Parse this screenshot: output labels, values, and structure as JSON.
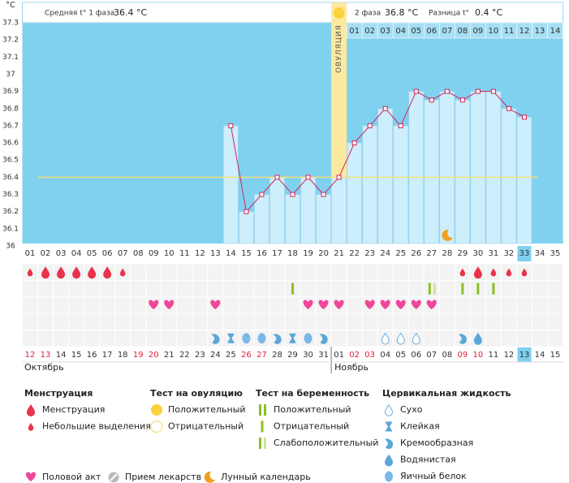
{
  "chart_data": {
    "type": "line",
    "y_label": "°C",
    "header": {
      "phase1_label": "Средняя t° 1 фаза",
      "phase1_value": "36.4 °C",
      "phase2_label": "2 фаза",
      "phase2_value": "36.8 °C",
      "diff_label": "Разница t°",
      "diff_value": "0.4 °C"
    },
    "categories": [
      "01",
      "02",
      "03",
      "04",
      "05",
      "06",
      "07",
      "08",
      "09",
      "10",
      "11",
      "12",
      "13",
      "14",
      "15",
      "16",
      "17",
      "18",
      "19",
      "20",
      "21",
      "22",
      "23",
      "24",
      "25",
      "26",
      "27",
      "28",
      "29",
      "30",
      "31",
      "32",
      "33",
      "34",
      "35"
    ],
    "values": [
      null,
      null,
      null,
      null,
      null,
      null,
      null,
      null,
      null,
      null,
      null,
      null,
      null,
      36.7,
      36.2,
      36.3,
      36.4,
      36.3,
      36.4,
      36.3,
      36.4,
      36.6,
      36.7,
      36.8,
      36.7,
      36.9,
      36.85,
      36.9,
      36.85,
      36.9,
      36.9,
      36.8,
      36.75,
      null,
      null
    ],
    "color": "#d0245a",
    "ylim": [
      36,
      37.3
    ],
    "yticks": [
      36,
      36.1,
      36.2,
      36.3,
      36.4,
      36.5,
      36.6,
      36.7,
      36.8,
      36.9,
      37,
      37.1,
      37.2,
      37.3
    ],
    "grid": false,
    "coverline": 36.4,
    "ovulation": {
      "label": "ОВУЛЯЦИЯ",
      "category": "21"
    },
    "phase2_start": "22",
    "phase2_days": [
      "01",
      "02",
      "03",
      "04",
      "05",
      "06",
      "07",
      "08",
      "09",
      "10",
      "11",
      "12",
      "13",
      "14"
    ],
    "today": "33",
    "dates": [
      "12",
      "13",
      "14",
      "15",
      "16",
      "17",
      "18",
      "19",
      "20",
      "21",
      "22",
      "23",
      "24",
      "25",
      "26",
      "27",
      "28",
      "29",
      "30",
      "31",
      "01",
      "02",
      "03",
      "04",
      "05",
      "06",
      "07",
      "08",
      "09",
      "10",
      "11",
      "12",
      "13",
      "14",
      "15"
    ],
    "weekend_days": [
      "01",
      "02",
      "08",
      "09",
      "15",
      "16",
      "22",
      "23",
      "29",
      "30"
    ],
    "months": [
      "Октябрь",
      "Ноябрь"
    ],
    "legend": [
      {
        "title": "Менструация",
        "items": [
          {
            "label": "Менструация",
            "shape": "drop",
            "color": "#e8334a",
            "days": [
              "02",
              "03",
              "04",
              "05",
              "06",
              "30"
            ]
          },
          {
            "label": "Небольшие выделения",
            "shape": "small-drop",
            "color": "#e8334a",
            "days": [
              "01",
              "07",
              "29",
              "31",
              "32",
              "33"
            ]
          }
        ]
      },
      {
        "title": "Тест на овуляцию",
        "items": [
          {
            "label": "Положительный",
            "shape": "circle",
            "color": "#f9d23c",
            "days": []
          },
          {
            "label": "Отрицательный",
            "shape": "ring",
            "color": "#f3d66a",
            "days": []
          }
        ]
      },
      {
        "title": "Тест на беременность",
        "items": [
          {
            "label": "Положительный",
            "shape": "bar-double",
            "color": "#8cbf22",
            "days": []
          },
          {
            "label": "Отрицательный",
            "shape": "bar",
            "color": "#8cbf22",
            "days": [
              "18",
              "29",
              "30",
              "31"
            ]
          },
          {
            "label": "Слабоположительный",
            "shape": "bar-weak",
            "color": "#8cbf22",
            "days": [
              "27"
            ]
          }
        ]
      },
      {
        "title": "Цервикальная жидкость",
        "items": [
          {
            "label": "Сухо",
            "shape": "dry",
            "color": "#5aa7d8",
            "days": [
              "24",
              "25",
              "26"
            ]
          },
          {
            "label": "Клейкая",
            "shape": "sticky",
            "color": "#5aa7d8",
            "days": [
              "14",
              "18"
            ]
          },
          {
            "label": "Кремообразная",
            "shape": "creamy",
            "color": "#5aa7d8",
            "days": [
              "13",
              "17",
              "20",
              "29"
            ]
          },
          {
            "label": "Водянистая",
            "shape": "watery",
            "color": "#5aa7d8",
            "days": [
              "30"
            ]
          },
          {
            "label": "Яичный белок",
            "shape": "egg",
            "color": "#79b9e6",
            "days": [
              "15",
              "16",
              "19"
            ]
          }
        ]
      }
    ],
    "legend_extra": [
      {
        "label": "Половой акт",
        "shape": "heart",
        "color": "#f0479a",
        "days": [
          "09",
          "10",
          "13",
          "19",
          "20",
          "21",
          "23",
          "24",
          "25",
          "26",
          "27"
        ]
      },
      {
        "label": "Прием лекарств",
        "shape": "pill",
        "color": "#bbbbbb",
        "days": []
      },
      {
        "label": "Лунный календарь",
        "shape": "moon",
        "color": "#f0a020",
        "days": [
          "28"
        ]
      }
    ]
  }
}
